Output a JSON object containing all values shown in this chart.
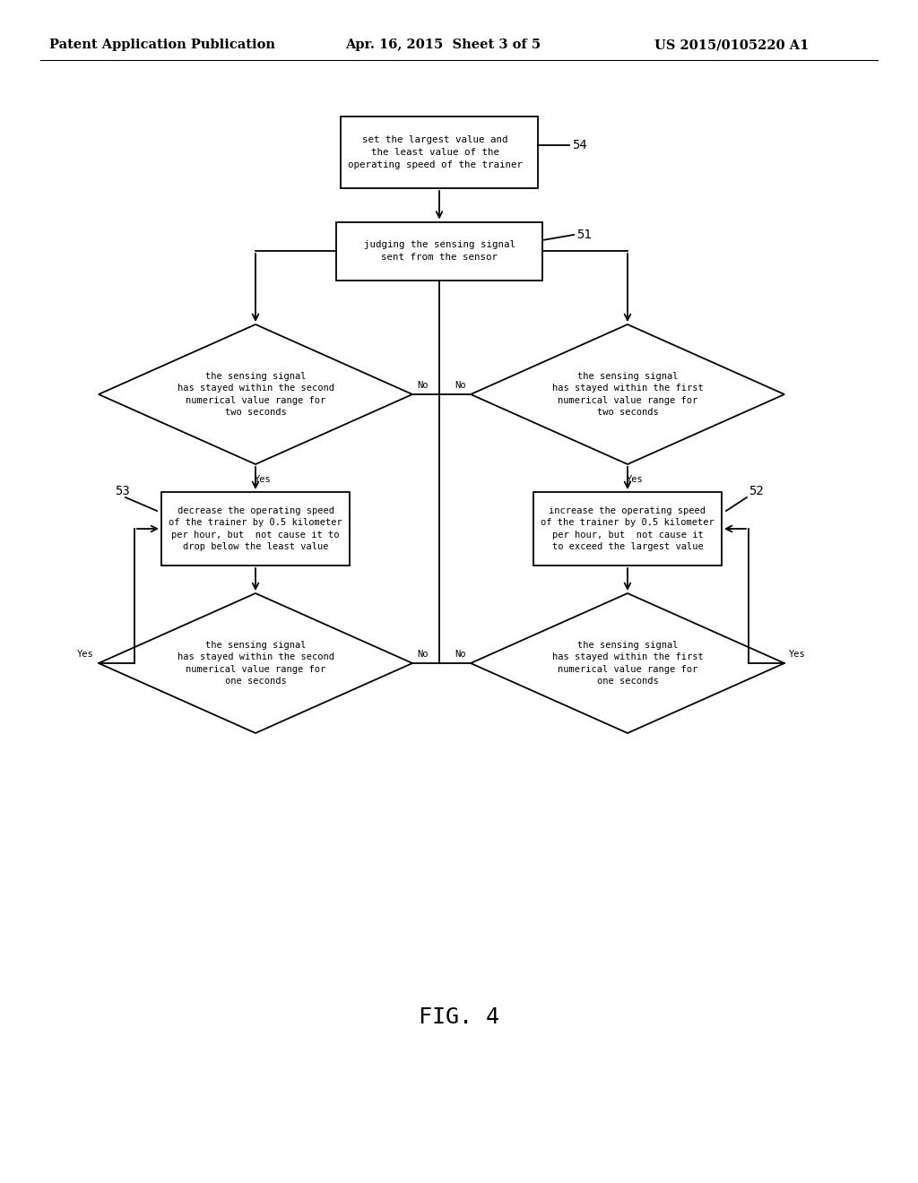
{
  "bg_color": "#ffffff",
  "text_color": "#000000",
  "header_left": "Patent Application Publication",
  "header_center": "Apr. 16, 2015  Sheet 3 of 5",
  "header_right": "US 2015/0105220 A1",
  "fig_label": "FIG. 4",
  "box54_text": "set the largest value and\nthe least value of the\noperating speed of the trainer",
  "box54_label": "54",
  "box51_text": "judging the sensing signal\nsent from the sensor",
  "box51_label": "51",
  "diamond_left2_text": "the sensing signal\nhas stayed within the second\nnumerical value range for\ntwo seconds",
  "diamond_right2_text": "the sensing signal\nhas stayed within the first\nnumerical value range for\ntwo seconds",
  "box53_text": "decrease the operating speed\nof the trainer by 0.5 kilometer\nper hour, but  not cause it to\ndrop below the least value",
  "box53_label": "53",
  "box52_text": "increase the operating speed\nof the trainer by 0.5 kilometer\nper hour, but  not cause it\nto exceed the largest value",
  "box52_label": "52",
  "diamond_left1_text": "the sensing signal\nhas stayed within the second\nnumerical value range for\none seconds",
  "diamond_right1_text": "the sensing signal\nhas stayed within the first\nnumerical value range for\none seconds",
  "font_size_header": 10.5,
  "font_size_box": 7.5,
  "font_size_label": 10,
  "font_size_fig": 18
}
